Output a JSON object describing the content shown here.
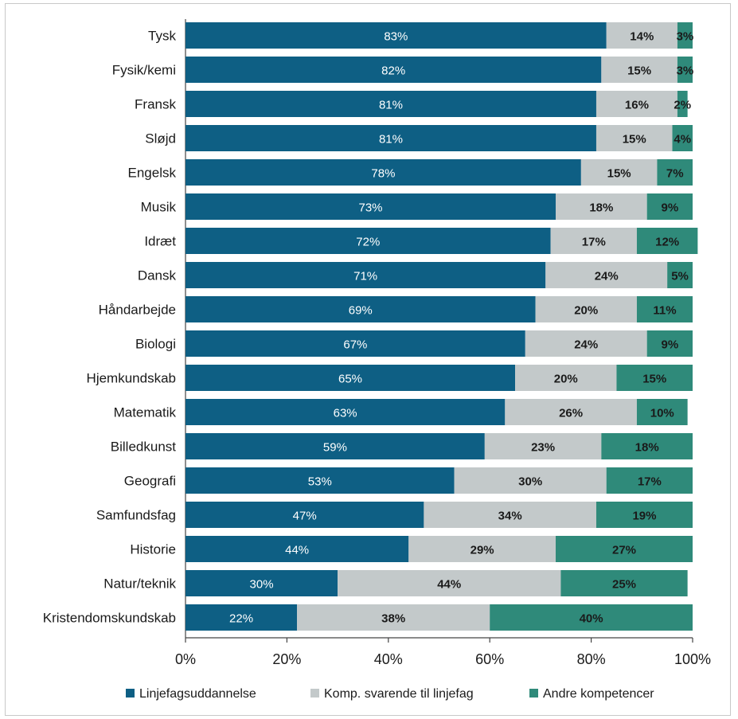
{
  "chart_data": {
    "type": "bar",
    "orientation": "horizontal",
    "stacked": true,
    "categories": [
      "Tysk",
      "Fysik/kemi",
      "Fransk",
      "Sløjd",
      "Engelsk",
      "Musik",
      "Idræt",
      "Dansk",
      "Håndarbejde",
      "Biologi",
      "Hjemkundskab",
      "Matematik",
      "Billedkunst",
      "Geografi",
      "Samfundsfag",
      "Historie",
      "Natur/teknik",
      "Kristendomskundskab"
    ],
    "series": [
      {
        "name": "Linjefagsuddannelse",
        "color": "#0e5f84",
        "values": [
          83,
          82,
          81,
          81,
          78,
          73,
          72,
          71,
          69,
          67,
          65,
          63,
          59,
          53,
          47,
          44,
          30,
          22
        ]
      },
      {
        "name": "Komp. svarende til linjefag",
        "color": "#c3c9ca",
        "values": [
          14,
          15,
          16,
          15,
          15,
          18,
          17,
          24,
          20,
          24,
          20,
          26,
          23,
          30,
          34,
          29,
          44,
          38
        ]
      },
      {
        "name": "Andre kompetencer",
        "color": "#2f8a7a",
        "values": [
          3,
          3,
          2,
          4,
          7,
          9,
          12,
          5,
          11,
          9,
          15,
          10,
          18,
          17,
          19,
          27,
          25,
          40
        ]
      }
    ],
    "xlim": [
      0,
      100
    ],
    "xticks": [
      "0%",
      "20%",
      "40%",
      "60%",
      "80%",
      "100%"
    ],
    "legend_position": "bottom"
  }
}
